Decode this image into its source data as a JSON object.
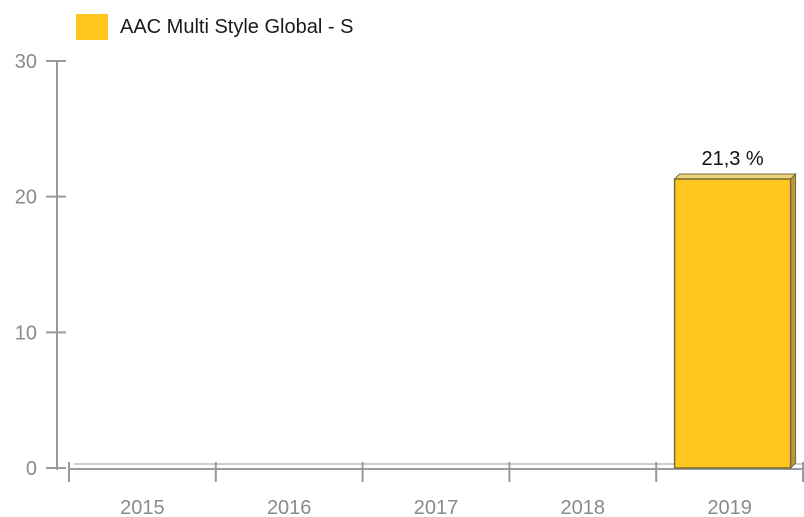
{
  "chart_data": {
    "type": "bar",
    "categories": [
      "2015",
      "2016",
      "2017",
      "2018",
      "2019"
    ],
    "series": [
      {
        "name": "AAC Multi Style Global - S",
        "values": [
          null,
          null,
          null,
          null,
          21.3
        ],
        "data_labels": [
          "",
          "",
          "",
          "",
          "21,3 %"
        ]
      }
    ],
    "ylim": [
      0,
      30
    ],
    "yticks": [
      0,
      10,
      20,
      30
    ],
    "ytick_labels": [
      "0",
      "10",
      "20",
      "30"
    ],
    "legend_position": "top-left",
    "grid": false,
    "colors": {
      "bar": "#ffc61e",
      "bar_side": "#b89a3a",
      "bar_top": "#ead27a",
      "bar_stroke": "#7a6a3a",
      "axis": "#9a9a9a",
      "tick_text": "#8a8a8a"
    }
  }
}
